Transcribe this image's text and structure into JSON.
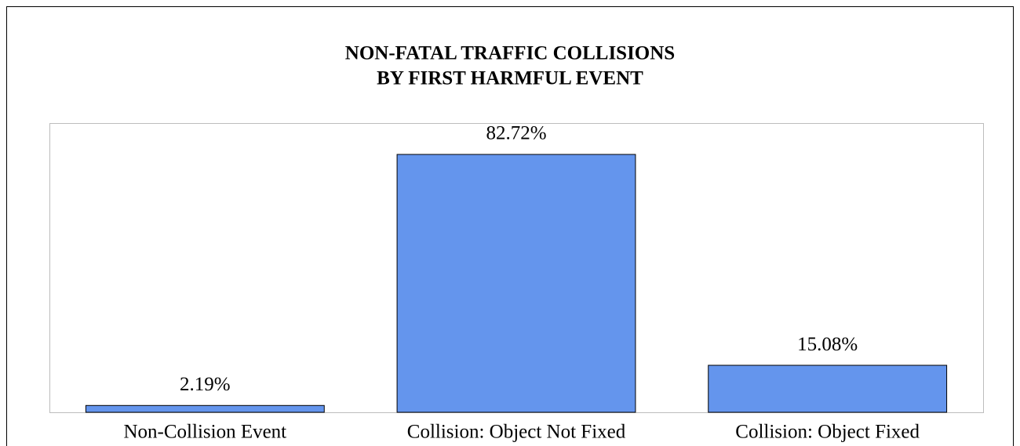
{
  "chart_data": {
    "type": "bar",
    "title": [
      "NON-FATAL TRAFFIC COLLISIONS",
      "BY FIRST HARMFUL EVENT"
    ],
    "categories": [
      "Non-Collision Event",
      "Collision: Object Not Fixed",
      "Collision: Object Fixed"
    ],
    "values": [
      2.19,
      82.72,
      15.08
    ],
    "value_labels": [
      "2.19%",
      "82.72%",
      "15.08%"
    ],
    "color": "#6495ED"
  }
}
